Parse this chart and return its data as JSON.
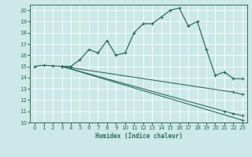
{
  "xlabel": "Humidex (Indice chaleur)",
  "bg_color": "#cce8e8",
  "grid_color": "#ffffff",
  "line_color": "#2e6b5e",
  "xlim": [
    -0.5,
    23.5
  ],
  "ylim": [
    10,
    20.5
  ],
  "xticks": [
    0,
    1,
    2,
    3,
    4,
    5,
    6,
    7,
    8,
    9,
    10,
    11,
    12,
    13,
    14,
    15,
    16,
    17,
    18,
    19,
    20,
    21,
    22,
    23
  ],
  "yticks": [
    10,
    11,
    12,
    13,
    14,
    15,
    16,
    17,
    18,
    19,
    20
  ],
  "line1_x": [
    0,
    1,
    2,
    3,
    4,
    5,
    6,
    7,
    8,
    9,
    10,
    11,
    12,
    13,
    14,
    15,
    16,
    17,
    18,
    19,
    20,
    21,
    22,
    23
  ],
  "line1_y": [
    15.0,
    15.1,
    15.05,
    15.0,
    15.0,
    15.6,
    16.5,
    16.2,
    17.3,
    16.0,
    16.2,
    18.0,
    18.8,
    18.8,
    19.4,
    20.0,
    20.2,
    18.6,
    19.0,
    16.5,
    14.2,
    14.5,
    13.9,
    13.9
  ],
  "line2_x": [
    3,
    22,
    23
  ],
  "line2_y": [
    15.0,
    12.7,
    12.5
  ],
  "line3_x": [
    3,
    21,
    22,
    23
  ],
  "line3_y": [
    15.0,
    11.0,
    10.8,
    10.6
  ],
  "line4_x": [
    3,
    23
  ],
  "line4_y": [
    15.0,
    10.2
  ]
}
